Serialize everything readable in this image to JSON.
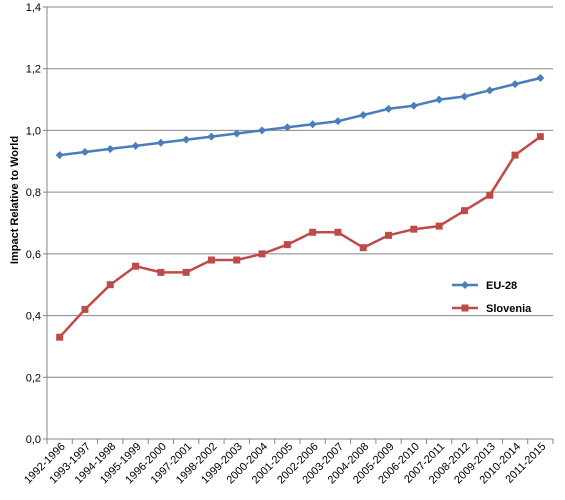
{
  "chart_data": {
    "type": "line",
    "title": "",
    "xlabel": "",
    "ylabel": "Impact Relative to World",
    "ylim": [
      0,
      1.4
    ],
    "yticks": [
      "0,0",
      "0,2",
      "0,4",
      "0,6",
      "0,8",
      "1,0",
      "1,2",
      "1,4"
    ],
    "grid": true,
    "legend_position": "right",
    "categories": [
      "1992-1996",
      "1993-1997",
      "1994-1998",
      "1995-1999",
      "1996-2000",
      "1997-2001",
      "1998-2002",
      "1999-2003",
      "2000-2004",
      "2001-2005",
      "2002-2006",
      "2003-2007",
      "2004-2008",
      "2005-2009",
      "2006-2010",
      "2007-2011",
      "2008-2012",
      "2009-2013",
      "2010-2014",
      "2011-2015"
    ],
    "series": [
      {
        "name": "EU-28",
        "color": "#4a7ebb",
        "marker": "diamond",
        "values": [
          0.92,
          0.93,
          0.94,
          0.95,
          0.96,
          0.97,
          0.98,
          0.99,
          1.0,
          1.01,
          1.02,
          1.03,
          1.05,
          1.07,
          1.08,
          1.1,
          1.11,
          1.13,
          1.15,
          1.17
        ]
      },
      {
        "name": "Slovenia",
        "color": "#be4b48",
        "marker": "square",
        "values": [
          0.33,
          0.42,
          0.5,
          0.56,
          0.54,
          0.54,
          0.58,
          0.58,
          0.6,
          0.63,
          0.67,
          0.67,
          0.62,
          0.66,
          0.68,
          0.69,
          0.74,
          0.79,
          0.92,
          0.98
        ]
      }
    ]
  }
}
